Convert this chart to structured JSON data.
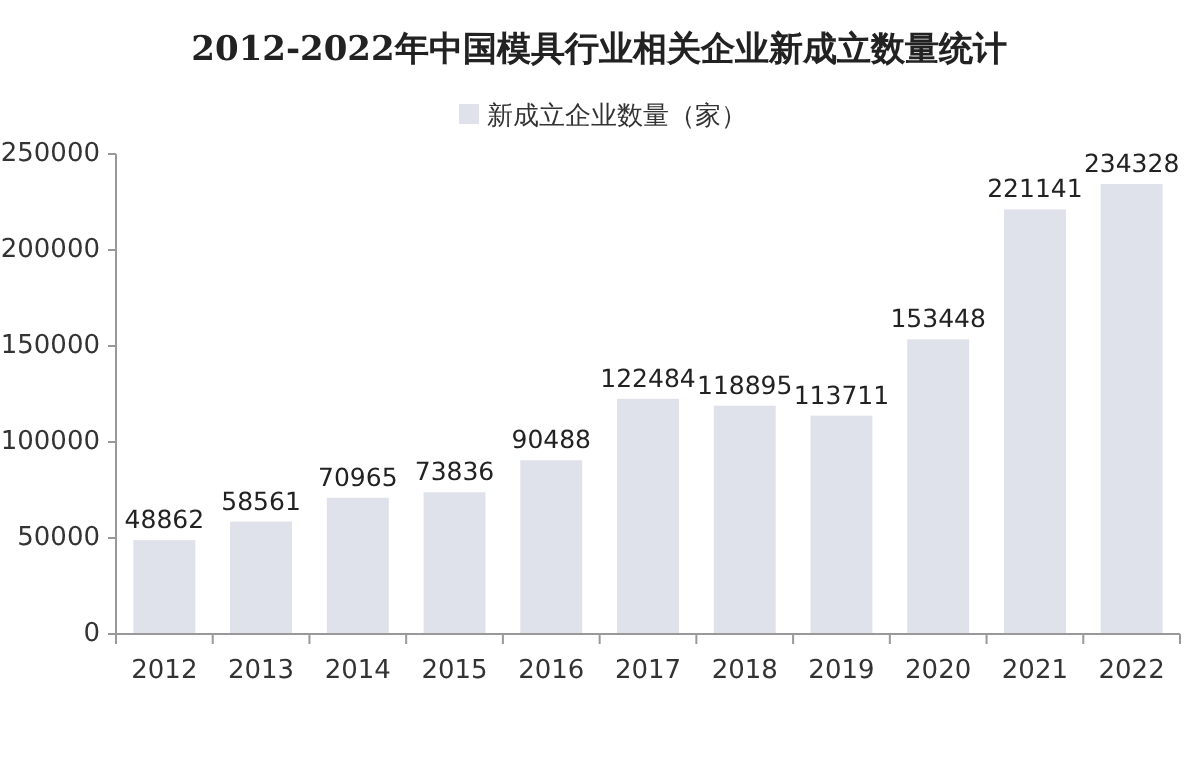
{
  "chart_data": {
    "type": "bar",
    "title": "2012-2022年中国模具行业相关企业新成立数量统计",
    "categories": [
      "2012",
      "2013",
      "2014",
      "2015",
      "2016",
      "2017",
      "2018",
      "2019",
      "2020",
      "2021",
      "2022"
    ],
    "series": [
      {
        "name": "新成立企业数量（家）",
        "color": "#dfe1eb",
        "values": [
          48862,
          58561,
          70965,
          73836,
          90488,
          122484,
          118895,
          113711,
          153448,
          221141,
          234328
        ]
      }
    ],
    "ylim": [
      0,
      250000
    ],
    "yticks": [
      0,
      50000,
      100000,
      150000,
      200000,
      250000
    ],
    "data_labels": true,
    "legend": "top"
  }
}
